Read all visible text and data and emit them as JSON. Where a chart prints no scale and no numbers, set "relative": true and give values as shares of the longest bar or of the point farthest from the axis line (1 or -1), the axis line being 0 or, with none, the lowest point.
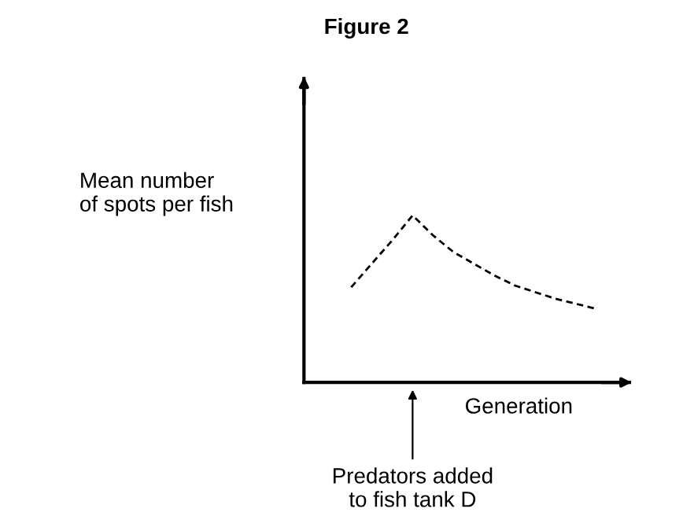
{
  "chart_data": {
    "type": "line",
    "title": "Figure 2",
    "xlabel": "Generation",
    "ylabel": "Mean number\nof spots per fish",
    "relative": true,
    "line_style": "dashed",
    "color": "#000000",
    "categories": [
      null,
      null,
      null,
      null,
      null,
      null,
      null,
      null,
      null,
      null,
      null,
      null,
      null
    ],
    "values": [
      0.57,
      0.71,
      0.85,
      1.0,
      0.88,
      0.78,
      0.71,
      0.64,
      0.58,
      0.54,
      0.5,
      0.47,
      0.44
    ],
    "annotations": [
      "Predators added\nto fish tank D"
    ]
  }
}
